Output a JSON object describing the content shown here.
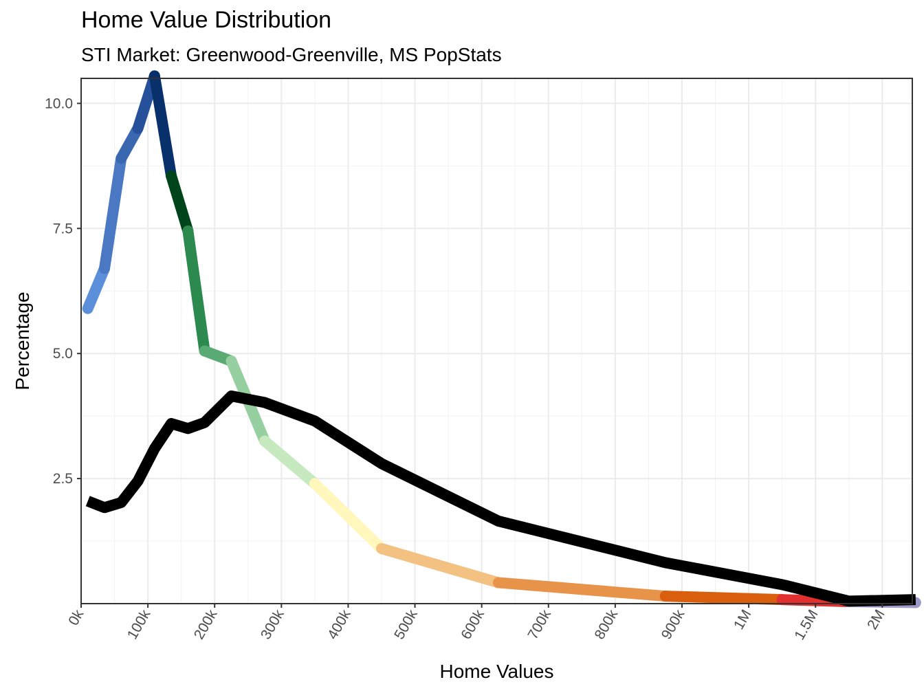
{
  "chart_data": {
    "type": "line",
    "title": "Home Value Distribution",
    "subtitle": "STI Market: Greenwood-Greenville, MS PopStats",
    "xlabel": "Home Values",
    "ylabel": "Percentage",
    "x_ticks": [
      "0k",
      "100k",
      "200k",
      "300k",
      "400k",
      "500k",
      "600k",
      "700k",
      "800k",
      "900k",
      "1M",
      "1.5M",
      "2M"
    ],
    "y_ticks": [
      "2.5",
      "5.0",
      "7.5",
      "10.0"
    ],
    "ylim": [
      0,
      10.5
    ],
    "grid": true,
    "series": [
      {
        "color": "#000000",
        "x": [
          10,
          35,
          60,
          85,
          110,
          135,
          160,
          185,
          225,
          275,
          350,
          450,
          625,
          875,
          1250,
          1750,
          2250
        ],
        "values": [
          2.05,
          1.92,
          2.02,
          2.45,
          3.1,
          3.6,
          3.5,
          3.62,
          4.15,
          4.02,
          3.65,
          2.8,
          1.65,
          0.82,
          0.38,
          0.05,
          0.08
        ]
      },
      {
        "color_gradient": true,
        "x": [
          10,
          35,
          60,
          85,
          110,
          135,
          160,
          185,
          225,
          275,
          350,
          450,
          625,
          875,
          1250,
          1750,
          2250
        ],
        "values": [
          5.9,
          6.7,
          8.9,
          9.5,
          10.55,
          8.55,
          7.45,
          5.05,
          4.85,
          3.25,
          2.4,
          1.1,
          0.42,
          0.15,
          0.08,
          0.04,
          0.02
        ],
        "segment_colors": [
          "#5b8fd9",
          "#4a78c2",
          "#3967b0",
          "#26509a",
          "#08306b",
          "#00441b",
          "#2c8a4e",
          "#5aab73",
          "#97d0a0",
          "#c7e9c0",
          "#fff7bc",
          "#f3c283",
          "#e8934a",
          "#d95f0e",
          "#e23030",
          "#9e9ac8",
          "#6a51a3"
        ]
      }
    ]
  }
}
